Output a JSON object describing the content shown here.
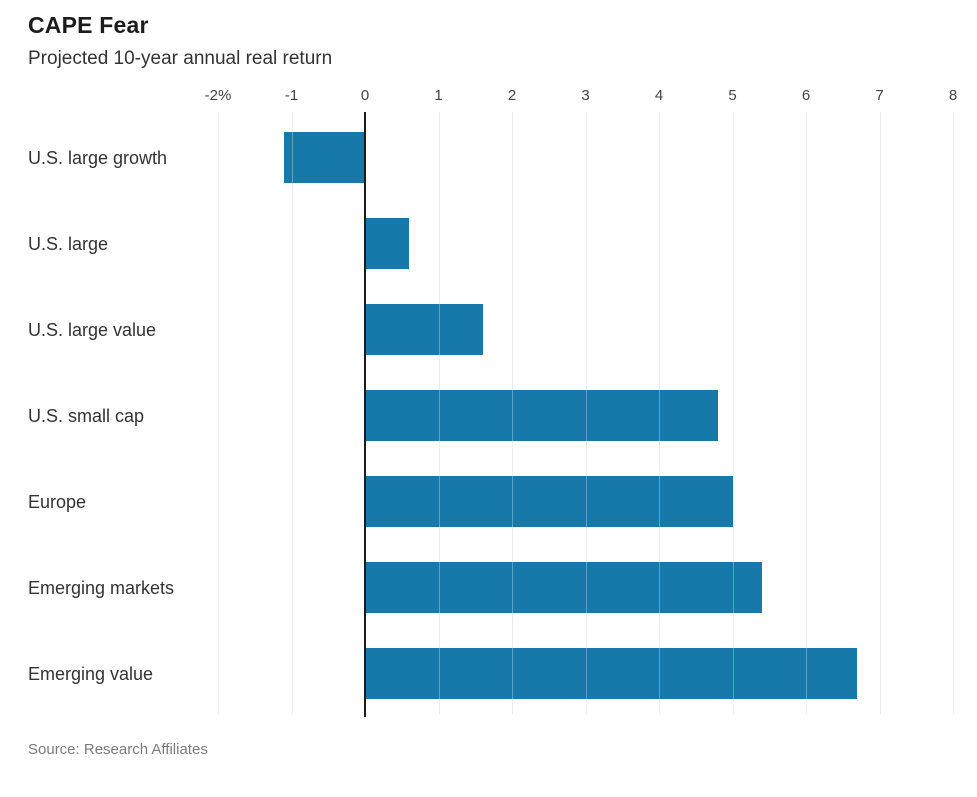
{
  "chart": {
    "title": "CAPE Fear",
    "subtitle": "Projected 10-year annual real return",
    "source": "Source: Research Affiliates"
  },
  "chart_data": {
    "type": "bar",
    "orientation": "horizontal",
    "title": "CAPE Fear",
    "subtitle": "Projected 10-year annual real return",
    "source": "Source: Research Affiliates",
    "categories": [
      "U.S. large growth",
      "U.S. large",
      "U.S. large value",
      "U.S. small cap",
      "Europe",
      "Emerging markets",
      "Emerging value"
    ],
    "values": [
      -1.1,
      0.6,
      1.6,
      4.8,
      5.0,
      5.4,
      6.7
    ],
    "xlabel": "",
    "ylabel": "",
    "xlim": [
      -2,
      8
    ],
    "xticks": [
      -2,
      -1,
      0,
      1,
      2,
      3,
      4,
      5,
      6,
      7,
      8
    ],
    "xtick_labels": [
      "-2%",
      "-1",
      "0",
      "1",
      "2",
      "3",
      "4",
      "5",
      "6",
      "7",
      "8"
    ],
    "grid": true,
    "legend": false,
    "bar_color": "#1779a9",
    "gridline_color": "#e6e6e6",
    "zero_line_color": "#1c1c1c",
    "axis_label_color": "#444444",
    "category_label_color": "#333333"
  }
}
